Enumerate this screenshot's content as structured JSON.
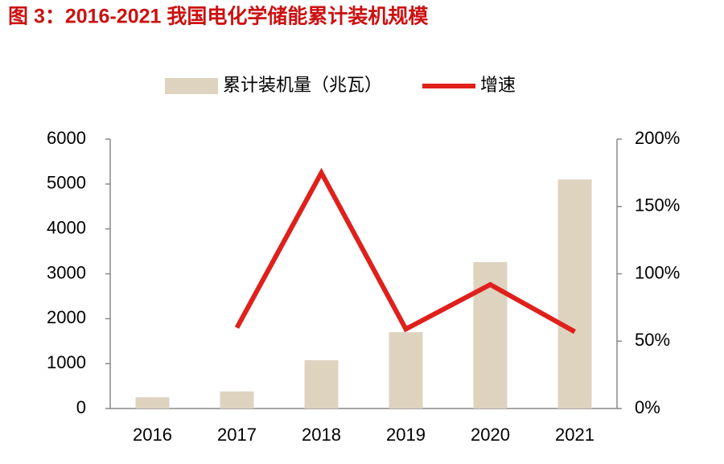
{
  "chart_data": {
    "type": "bar_line",
    "title": "图 3：2016-2021 我国电化学储能累计装机规模",
    "categories": [
      "2016",
      "2017",
      "2018",
      "2019",
      "2020",
      "2021"
    ],
    "series": [
      {
        "name": "累计装机量（兆瓦）",
        "type": "bar",
        "color": "#ddd3bf",
        "values": [
          250,
          380,
          1075,
          1700,
          3260,
          5100
        ]
      },
      {
        "name": "增速",
        "type": "line",
        "axis": "y2",
        "color": "#e0201b",
        "values": [
          null,
          60,
          175,
          59,
          92,
          57
        ]
      }
    ],
    "ylim": [
      0,
      6000
    ],
    "yticks": [
      0,
      1000,
      2000,
      3000,
      4000,
      5000,
      6000
    ],
    "y2lim": [
      0,
      200
    ],
    "y2ticks": [
      {
        "value": 0,
        "label": "0%"
      },
      {
        "value": 50,
        "label": "50%"
      },
      {
        "value": 100,
        "label": "100%"
      },
      {
        "value": 150,
        "label": "150%"
      },
      {
        "value": 200,
        "label": "200%"
      }
    ],
    "grid": false,
    "legend": "top"
  }
}
